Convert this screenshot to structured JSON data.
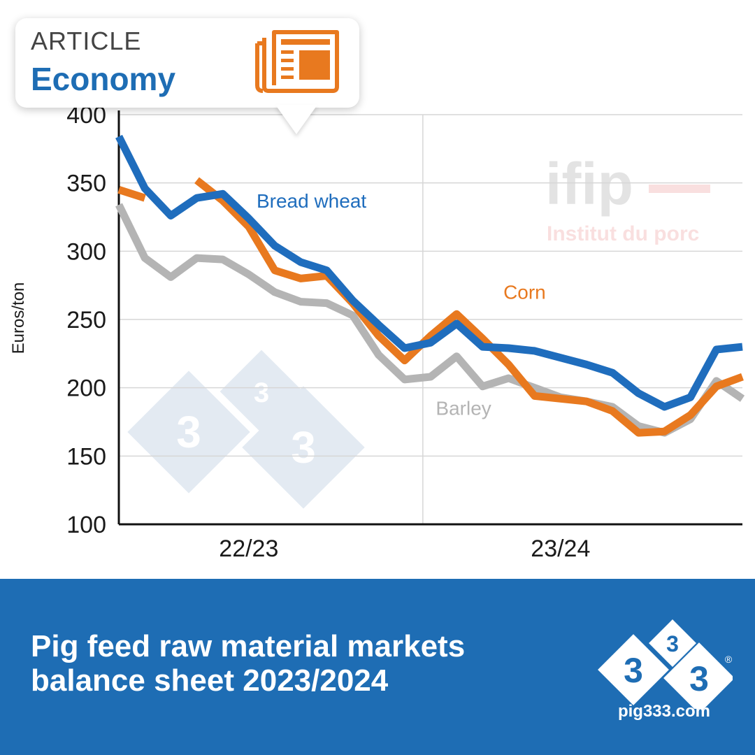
{
  "badge": {
    "kicker": "ARTICLE",
    "category": "Economy",
    "icon": "newspaper-icon"
  },
  "watermark": {
    "brand": "ifip",
    "tagline": "Institut du porc",
    "logo_digit": "3"
  },
  "footer": {
    "title": "Pig feed raw material markets balance sheet 2023/2024",
    "site": "pig333.com",
    "logo_digit": "3",
    "registered_mark": "®"
  },
  "colors": {
    "bread_wheat": "#1f6dbd",
    "corn": "#e8791f",
    "barley": "#b4b4b4",
    "brand_blue": "#1e6db4",
    "accent_orange": "#e8791f"
  },
  "chart_data": {
    "type": "line",
    "title": "",
    "xlabel": "",
    "ylabel": "Euros/ton",
    "ylim": [
      100,
      400
    ],
    "yticks": [
      100,
      150,
      200,
      250,
      300,
      350,
      400
    ],
    "xlim": [
      0,
      24
    ],
    "x_period_labels": [
      {
        "label": "22/23",
        "x": 5
      },
      {
        "label": "23/24",
        "x": 17
      }
    ],
    "period_divider_x": 11.7,
    "grid": true,
    "series": [
      {
        "name": "Bread wheat",
        "color_key": "bread_wheat",
        "values": [
          [
            0,
            384
          ],
          [
            1,
            346
          ],
          [
            2,
            326
          ],
          [
            3,
            339
          ],
          [
            4,
            342
          ],
          [
            5,
            324
          ],
          [
            6,
            304
          ],
          [
            7,
            292
          ],
          [
            8,
            286
          ],
          [
            9,
            264
          ],
          [
            10,
            246
          ],
          [
            11,
            229
          ],
          [
            12,
            233
          ],
          [
            13,
            247
          ],
          [
            14,
            230
          ],
          [
            15,
            229
          ],
          [
            16,
            227
          ],
          [
            17,
            222
          ],
          [
            18,
            217
          ],
          [
            19,
            211
          ],
          [
            20,
            196
          ],
          [
            21,
            186
          ],
          [
            22,
            193
          ],
          [
            23,
            228
          ],
          [
            24,
            230
          ]
        ]
      },
      {
        "name": "Corn",
        "color_key": "corn",
        "segments": [
          [
            [
              0,
              345
            ],
            [
              1,
              339
            ]
          ],
          [
            [
              3,
              352
            ],
            [
              4,
              337
            ],
            [
              5,
              318
            ],
            [
              6,
              286
            ],
            [
              7,
              280
            ],
            [
              8,
              282
            ],
            [
              9,
              262
            ],
            [
              10,
              238
            ],
            [
              11,
              220
            ],
            [
              12,
              238
            ],
            [
              13,
              254
            ],
            [
              14,
              236
            ],
            [
              15,
              217
            ],
            [
              16,
              194
            ],
            [
              17,
              192
            ],
            [
              18,
              190
            ],
            [
              19,
              183
            ],
            [
              20,
              167
            ],
            [
              21,
              168
            ],
            [
              22,
              180
            ],
            [
              23,
              201
            ],
            [
              24,
              208
            ]
          ]
        ]
      },
      {
        "name": "Barley",
        "color_key": "barley",
        "values": [
          [
            0,
            334
          ],
          [
            1,
            295
          ],
          [
            2,
            281
          ],
          [
            3,
            295
          ],
          [
            4,
            294
          ],
          [
            5,
            283
          ],
          [
            6,
            270
          ],
          [
            7,
            263
          ],
          [
            8,
            262
          ],
          [
            9,
            253
          ],
          [
            10,
            224
          ],
          [
            11,
            206
          ],
          [
            12,
            208
          ],
          [
            13,
            223
          ],
          [
            14,
            201
          ],
          [
            15,
            207
          ],
          [
            16,
            200
          ],
          [
            17,
            193
          ],
          [
            18,
            190
          ],
          [
            19,
            186
          ],
          [
            20,
            172
          ],
          [
            21,
            167
          ],
          [
            22,
            177
          ],
          [
            23,
            205
          ],
          [
            24,
            192
          ]
        ]
      }
    ],
    "series_labels": [
      {
        "name": "Bread wheat",
        "x": 5.3,
        "y": 332
      },
      {
        "name": "Corn",
        "x": 14.8,
        "y": 265
      },
      {
        "name": "Barley",
        "x": 12.2,
        "y": 180
      }
    ]
  }
}
